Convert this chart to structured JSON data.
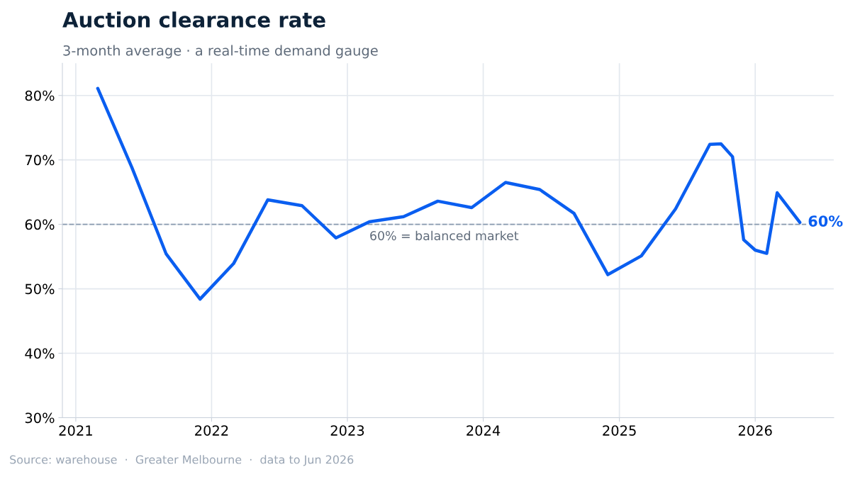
{
  "chart_data": {
    "type": "line",
    "title": "Auction clearance rate",
    "subtitle": "3-month average · a real-time demand gauge",
    "x": [
      "2021-03",
      "2021-06",
      "2021-09",
      "2021-12",
      "2022-03",
      "2022-06",
      "2022-09",
      "2022-12",
      "2023-03",
      "2023-06",
      "2023-09",
      "2023-12",
      "2024-03",
      "2024-06",
      "2024-09",
      "2024-12",
      "2025-03",
      "2025-06",
      "2025-09",
      "2025-10",
      "2025-11",
      "2025-12",
      "2026-01",
      "2026-02",
      "2026-03",
      "2026-05"
    ],
    "series": [
      {
        "color": "#0a5ef0",
        "values": [
          81.1,
          68.8,
          55.4,
          48.4,
          53.9,
          63.8,
          62.9,
          57.9,
          60.4,
          61.2,
          63.6,
          62.6,
          66.5,
          65.4,
          61.7,
          52.2,
          55.1,
          62.4,
          72.4,
          72.5,
          70.5,
          57.6,
          56.0,
          55.5,
          64.9,
          60.3
        ]
      }
    ],
    "xlim": [
      "2020-11-26",
      "2026-07-31"
    ],
    "xticks": [
      {
        "value": "2021-01-01",
        "label": "2021"
      },
      {
        "value": "2022-01-01",
        "label": "2022"
      },
      {
        "value": "2023-01-01",
        "label": "2023"
      },
      {
        "value": "2024-01-01",
        "label": "2024"
      },
      {
        "value": "2025-01-01",
        "label": "2025"
      },
      {
        "value": "2026-01-01",
        "label": "2026"
      }
    ],
    "ylim": [
      30,
      85
    ],
    "yticks": [
      {
        "value": 30,
        "label": "30%"
      },
      {
        "value": 40,
        "label": "40%"
      },
      {
        "value": 50,
        "label": "50%"
      },
      {
        "value": 60,
        "label": "60%"
      },
      {
        "value": 70,
        "label": "70%"
      },
      {
        "value": 80,
        "label": "80%"
      }
    ],
    "ref_lines": [
      {
        "axis": "y",
        "value": 60,
        "label": "60% = balanced market",
        "color": "#8a9bb0",
        "line_style": "dashed"
      }
    ],
    "annotations": [
      {
        "text": "60%",
        "x": "2026-05",
        "y": 60.3
      },
      "Source: warehouse  ·  Greater Melbourne  ·  data to Jun 2026"
    ],
    "grid": true,
    "line_style": "solid",
    "marker": "none",
    "legend": false
  }
}
